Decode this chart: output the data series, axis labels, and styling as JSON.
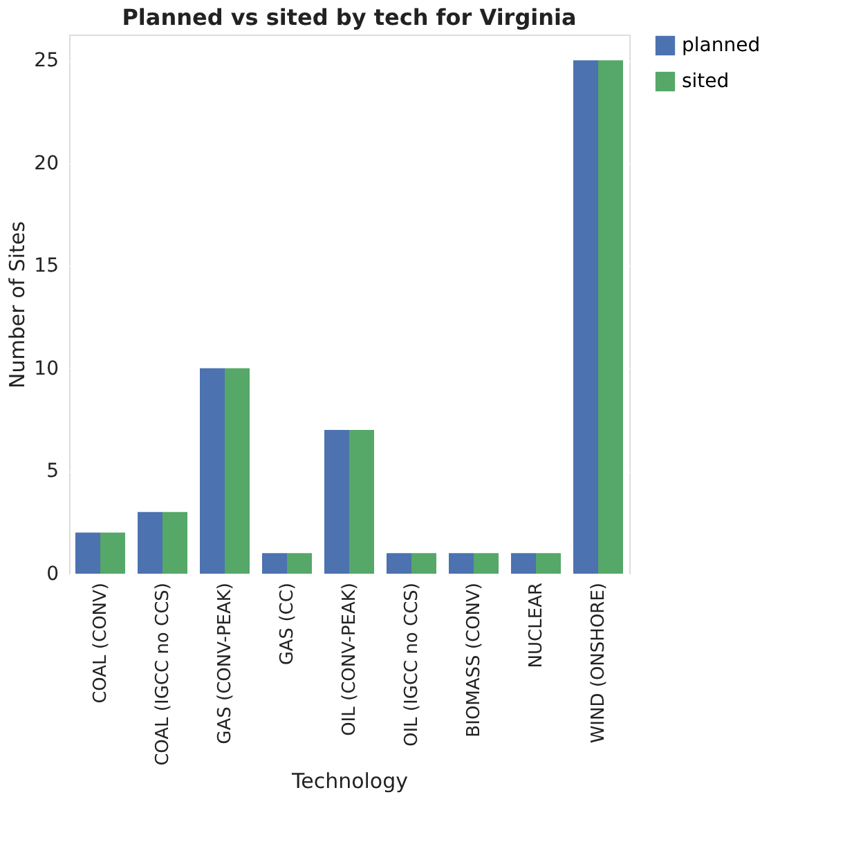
{
  "chart_data": {
    "type": "bar",
    "title": "Planned vs sited by tech for Virginia",
    "xlabel": "Technology",
    "ylabel": "Number of Sites",
    "categories": [
      "COAL (CONV)",
      "COAL (IGCC no CCS)",
      "GAS (CONV-PEAK)",
      "GAS (CC)",
      "OIL (CONV-PEAK)",
      "OIL (IGCC no CCS)",
      "BIOMASS (CONV)",
      "NUCLEAR",
      "WIND (ONSHORE)"
    ],
    "series": [
      {
        "name": "planned",
        "color": "#4c72b0",
        "values": [
          2,
          3,
          10,
          1,
          7,
          1,
          1,
          1,
          25
        ]
      },
      {
        "name": "sited",
        "color": "#55a868",
        "values": [
          2,
          3,
          10,
          1,
          7,
          1,
          1,
          1,
          25
        ]
      }
    ],
    "ylim": [
      0,
      26.25
    ],
    "yticks": [
      0,
      5,
      10,
      15,
      20,
      25
    ],
    "grid": "y",
    "legend": "top right"
  }
}
